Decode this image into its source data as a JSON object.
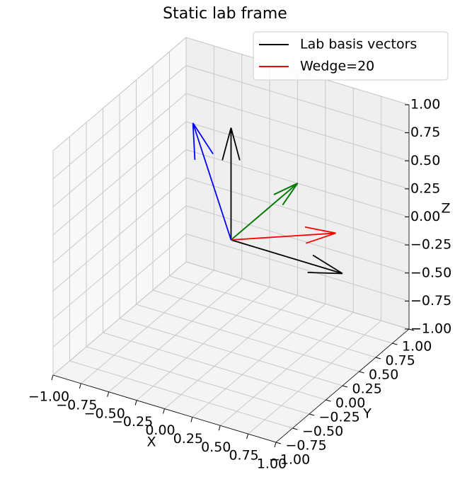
{
  "chart_data": {
    "type": "quiver3d",
    "title": "Static lab frame",
    "xlabel": "X",
    "ylabel": "Y",
    "zlabel": "Z",
    "xlim": [
      -1,
      1
    ],
    "ylim": [
      -1,
      1
    ],
    "zlim": [
      -1,
      1
    ],
    "xticks": [
      {
        "value": -1,
        "label": "−1.00"
      },
      {
        "value": -0.75,
        "label": "−0.75"
      },
      {
        "value": -0.5,
        "label": "−0.50"
      },
      {
        "value": -0.25,
        "label": "−0.25"
      },
      {
        "value": 0,
        "label": "0.00"
      },
      {
        "value": 0.25,
        "label": "0.25"
      },
      {
        "value": 0.5,
        "label": "0.50"
      },
      {
        "value": 0.75,
        "label": "0.75"
      },
      {
        "value": 1,
        "label": "1.00"
      }
    ],
    "yticks": [
      {
        "value": -1,
        "label": "−1.00"
      },
      {
        "value": -0.75,
        "label": "−0.75"
      },
      {
        "value": -0.5,
        "label": "−0.50"
      },
      {
        "value": -0.25,
        "label": "−0.25"
      },
      {
        "value": 0,
        "label": "0.00"
      },
      {
        "value": 0.25,
        "label": "0.25"
      },
      {
        "value": 0.5,
        "label": "0.50"
      },
      {
        "value": 0.75,
        "label": "0.75"
      },
      {
        "value": 1,
        "label": "1.00"
      }
    ],
    "zticks": [
      {
        "value": -1,
        "label": "−1.00"
      },
      {
        "value": -0.75,
        "label": "−0.75"
      },
      {
        "value": -0.5,
        "label": "−0.50"
      },
      {
        "value": -0.25,
        "label": "−0.25"
      },
      {
        "value": 0,
        "label": "0.00"
      },
      {
        "value": 0.25,
        "label": "0.25"
      },
      {
        "value": 0.5,
        "label": "0.50"
      },
      {
        "value": 0.75,
        "label": "0.75"
      },
      {
        "value": 1,
        "label": "1.00"
      }
    ],
    "grid": true,
    "legend": "upper right",
    "origin": [
      0,
      0,
      0
    ],
    "series": [
      {
        "name": "Lab basis vectors",
        "color": "#000000",
        "vectors": [
          [
            1,
            0,
            0
          ],
          [
            0,
            1,
            0
          ],
          [
            0,
            0,
            1
          ]
        ]
      },
      {
        "name": "Wedge=20",
        "color": "#ff0000",
        "vectors": [
          [
            0.94,
            0,
            0.342
          ]
        ]
      },
      {
        "color": "#008000",
        "vectors": [
          [
            0,
            1,
            0
          ]
        ]
      },
      {
        "color": "#0000ff",
        "vectors": [
          [
            -0.342,
            0,
            0.94
          ]
        ]
      }
    ]
  }
}
